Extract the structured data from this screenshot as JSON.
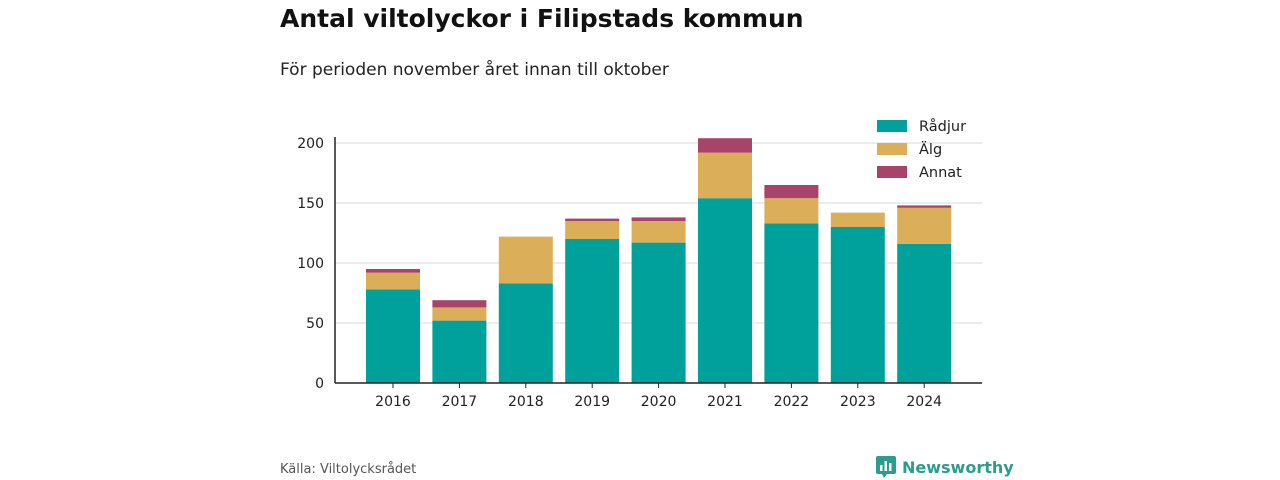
{
  "title": "Antal viltolyckor i Filipstads kommun",
  "subtitle": "För perioden november året innan till oktober",
  "source": "Källa: Viltolycksrådet",
  "brand": "Newsworthy",
  "brand_icon": "newsworthy-logo-icon",
  "chart_data": {
    "type": "bar",
    "stacked": true,
    "categories": [
      "2016",
      "2017",
      "2018",
      "2019",
      "2020",
      "2021",
      "2022",
      "2023",
      "2024"
    ],
    "series": [
      {
        "name": "Rådjur",
        "color": "#00a19a",
        "values": [
          78,
          52,
          83,
          120,
          117,
          154,
          133,
          130,
          116
        ]
      },
      {
        "name": "Älg",
        "color": "#dbae5a",
        "values": [
          14,
          11,
          39,
          15,
          18,
          38,
          21,
          12,
          30
        ]
      },
      {
        "name": "Annat",
        "color": "#a8436a",
        "values": [
          3,
          6,
          0,
          2,
          3,
          12,
          11,
          0,
          2
        ]
      }
    ],
    "yticks": [
      0,
      50,
      100,
      150,
      200
    ],
    "ylim": [
      0,
      210
    ],
    "grid": true,
    "legend": "top-right"
  }
}
